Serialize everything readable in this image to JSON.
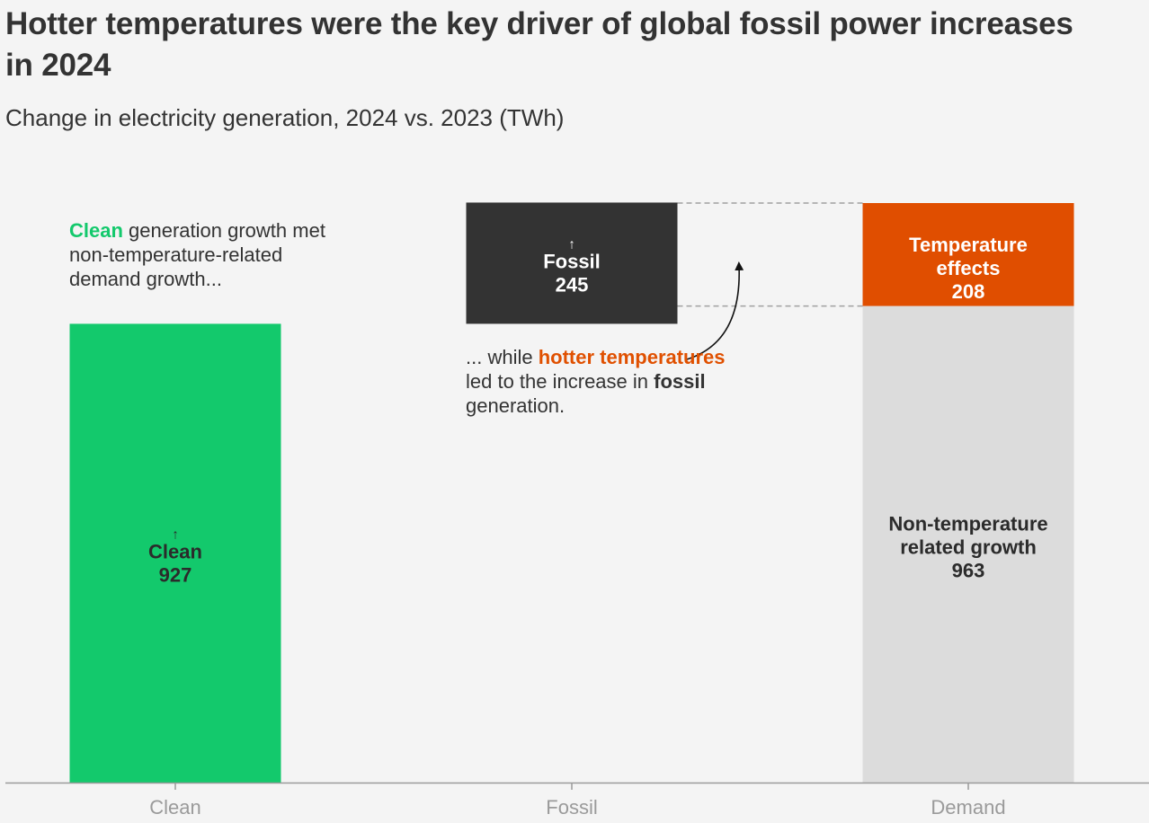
{
  "title": "Hotter temperatures were the key driver of global fossil power increases in 2024",
  "subtitle": "Change in electricity generation, 2024 vs. 2023 (TWh)",
  "annotations": {
    "left": {
      "highlight": "Clean",
      "rest": " generation growth met non-temperature-related demand growth..."
    },
    "middle": {
      "prefix": "... while ",
      "highlight": "hotter temperatures",
      "middle": " led to the increase in ",
      "bold": "fossil",
      "suffix": " generation."
    }
  },
  "colors": {
    "clean": "#13c96c",
    "fossil": "#333333",
    "temperature": "#e04e00",
    "non_temperature": "#dcdcdc",
    "background": "#f4f4f4"
  },
  "chart_data": {
    "type": "bar",
    "stacked": true,
    "categories": [
      "Clean",
      "Fossil",
      "Demand"
    ],
    "series": [
      {
        "key": "clean",
        "category": "Clean",
        "label": "Clean",
        "value": 927,
        "base": 0,
        "arrow": "↑"
      },
      {
        "key": "fossil",
        "category": "Fossil",
        "label": "Fossil",
        "value": 245,
        "base": 927,
        "arrow": "↑"
      },
      {
        "key": "non_temperature",
        "category": "Demand",
        "label": "Non-temperature related growth",
        "value": 963,
        "base": 0,
        "arrow": ""
      },
      {
        "key": "temperature",
        "category": "Demand",
        "label": "Temperature effects",
        "value": 208,
        "base": 963,
        "arrow": ""
      }
    ],
    "ylim": [
      0,
      1171
    ],
    "grid": false,
    "legend": "none"
  }
}
